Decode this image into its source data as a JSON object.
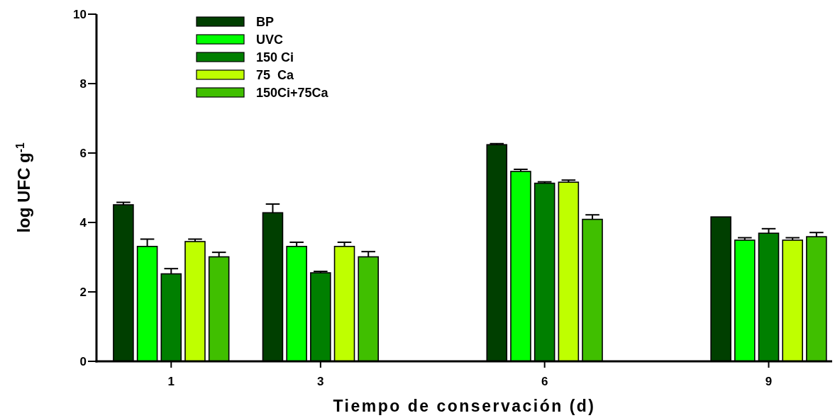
{
  "chart_data": {
    "type": "bar",
    "xlabel": "Tiempo de conservación (d)",
    "ylabel": "log UFC g$^{-1}$",
    "x": [
      1,
      3,
      6,
      9
    ],
    "xlim": [
      0,
      9.85
    ],
    "xticks": [
      1,
      3,
      6,
      9
    ],
    "ylim": [
      0,
      10
    ],
    "yticks": [
      0,
      2,
      4,
      6,
      8,
      10
    ],
    "legend": "top left",
    "series": [
      {
        "name": "BP",
        "color": "#003f00",
        "values": [
          4.51,
          4.28,
          6.24,
          4.16
        ],
        "errors": [
          [
            4.51,
            4.58
          ],
          [
            4.28,
            4.53
          ],
          [
            6.24,
            6.27
          ],
          null
        ]
      },
      {
        "name": "UVC",
        "color": "#00ff00",
        "values": [
          3.31,
          3.31,
          5.47,
          3.49
        ],
        "errors": [
          [
            3.31,
            3.52
          ],
          [
            3.31,
            3.43
          ],
          [
            5.47,
            5.53
          ],
          [
            3.49,
            3.56
          ]
        ]
      },
      {
        "name": "150 Ci",
        "color": "#007f00",
        "values": [
          2.52,
          2.55,
          5.13,
          3.69
        ],
        "errors": [
          [
            2.52,
            2.67
          ],
          [
            2.55,
            2.59
          ],
          [
            5.13,
            5.17
          ],
          [
            3.69,
            3.82
          ]
        ]
      },
      {
        "name": "75  Ca",
        "color": "#bfff00",
        "values": [
          3.45,
          3.31,
          5.16,
          3.49
        ],
        "errors": [
          [
            3.45,
            3.52
          ],
          [
            3.31,
            3.43
          ],
          [
            5.16,
            5.22
          ],
          [
            3.49,
            3.56
          ]
        ]
      },
      {
        "name": "150Ci+75Ca",
        "color": "#40bf00",
        "values": [
          3.01,
          3.01,
          4.09,
          3.59
        ],
        "errors": [
          [
            3.01,
            3.14
          ],
          [
            3.01,
            3.16
          ],
          [
            4.09,
            4.22
          ],
          [
            3.59,
            3.71
          ]
        ]
      }
    ]
  }
}
